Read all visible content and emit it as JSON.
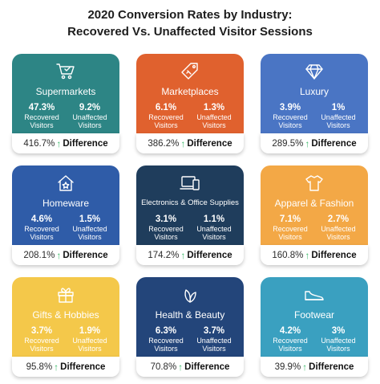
{
  "title_line1": "2020 Conversion Rates by Industry:",
  "title_line2": "Recovered Vs. Unaffected Visitor Sessions",
  "labels": {
    "recovered": "Recovered Visitors",
    "unaffected": "Unaffected Visitors",
    "difference": "Difference"
  },
  "cards": [
    {
      "category": "Supermarkets",
      "recovered": "47.3%",
      "unaffected": "9.2%",
      "difference": "416.7%",
      "color": "#2d8585",
      "icon": "shopping-cart-icon"
    },
    {
      "category": "Marketplaces",
      "recovered": "6.1%",
      "unaffected": "1.3%",
      "difference": "386.2%",
      "color": "#e0612e",
      "icon": "price-tag-icon"
    },
    {
      "category": "Luxury",
      "recovered": "3.9%",
      "unaffected": "1%",
      "difference": "289.5%",
      "color": "#4a75c4",
      "icon": "diamond-icon"
    },
    {
      "category": "Homeware",
      "recovered": "4.6%",
      "unaffected": "1.5%",
      "difference": "208.1%",
      "color": "#2f5ca8",
      "icon": "house-icon"
    },
    {
      "category": "Electronics & Office Supplies",
      "recovered": "3.1%",
      "unaffected": "1.1%",
      "difference": "174.2%",
      "color": "#1f3d5c",
      "icon": "devices-icon"
    },
    {
      "category": "Apparel & Fashion",
      "recovered": "7.1%",
      "unaffected": "2.7%",
      "difference": "160.8%",
      "color": "#f3a846",
      "icon": "tshirt-icon"
    },
    {
      "category": "Gifts & Hobbies",
      "recovered": "3.7%",
      "unaffected": "1.9%",
      "difference": "95.8%",
      "color": "#f4c84a",
      "icon": "gift-icon"
    },
    {
      "category": "Health & Beauty",
      "recovered": "6.3%",
      "unaffected": "3.7%",
      "difference": "70.8%",
      "color": "#23457a",
      "icon": "leaf-icon"
    },
    {
      "category": "Footwear",
      "recovered": "4.2%",
      "unaffected": "3%",
      "difference": "39.9%",
      "color": "#3aa0c0",
      "icon": "shoe-icon"
    }
  ]
}
